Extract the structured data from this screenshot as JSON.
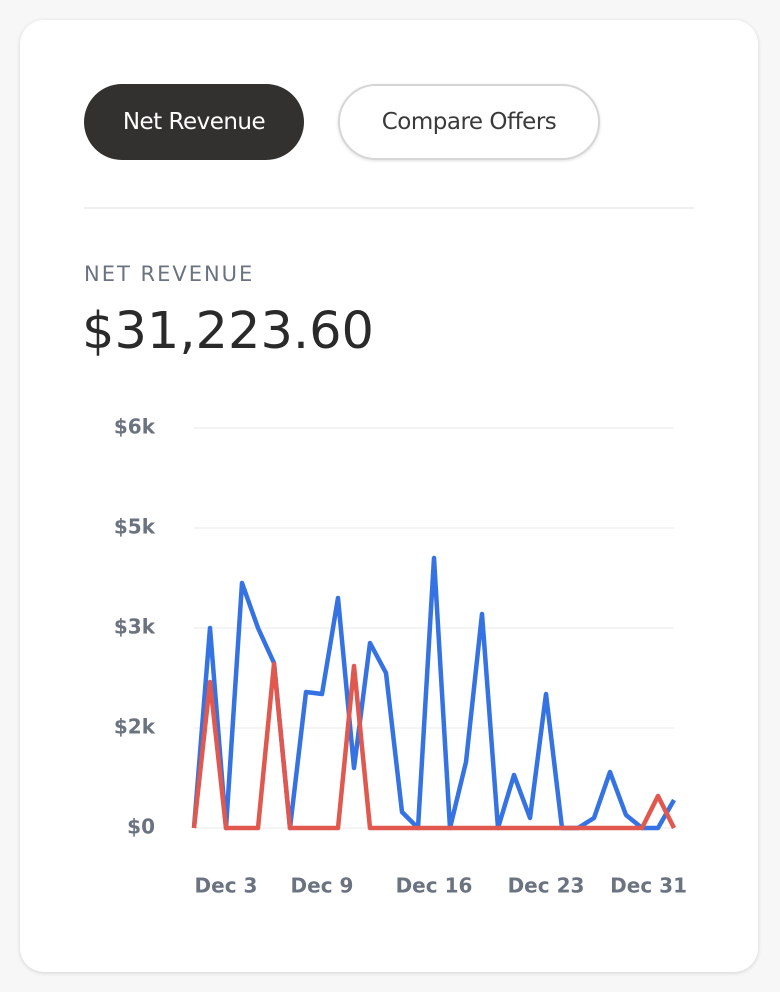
{
  "tabs": [
    "Net Revenue",
    "Compare Offers"
  ],
  "summary": {
    "label": "NET REVENUE",
    "value": "$31,223.60"
  },
  "chart_data": {
    "type": "line",
    "categories": [
      null,
      null,
      "Dec 3",
      null,
      null,
      null,
      null,
      null,
      "Dec 9",
      null,
      null,
      null,
      null,
      null,
      null,
      "Dec 16",
      null,
      null,
      null,
      null,
      null,
      null,
      "Dec 23",
      null,
      null,
      null,
      null,
      null,
      null,
      null,
      "Dec 31"
    ],
    "series": [
      {
        "color": "#3572e3",
        "values": [
          0,
          3000,
          0,
          3675,
          3000,
          2475,
          0,
          2040,
          2010,
          3450,
          900,
          2775,
          2325,
          240,
          0,
          4050,
          0,
          990,
          3210,
          0,
          795,
          150,
          2010,
          0,
          0,
          150,
          840,
          195,
          0,
          0,
          420
        ]
      },
      {
        "color": "#e0584e",
        "values": [
          0,
          2190,
          0,
          0,
          0,
          2460,
          0,
          0,
          0,
          0,
          2430,
          0,
          0,
          0,
          0,
          0,
          0,
          0,
          0,
          0,
          0,
          0,
          0,
          0,
          0,
          0,
          0,
          0,
          0,
          480,
          0
        ]
      }
    ],
    "ylim": [
      0,
      6000
    ],
    "yticks": [
      {
        "value": 0,
        "label": "$0"
      },
      {
        "value": 1500,
        "label": "$2k"
      },
      {
        "value": 3000,
        "label": "$3k"
      },
      {
        "value": 4500,
        "label": "$5k"
      },
      {
        "value": 6000,
        "label": "$6k"
      }
    ],
    "grid": true
  }
}
